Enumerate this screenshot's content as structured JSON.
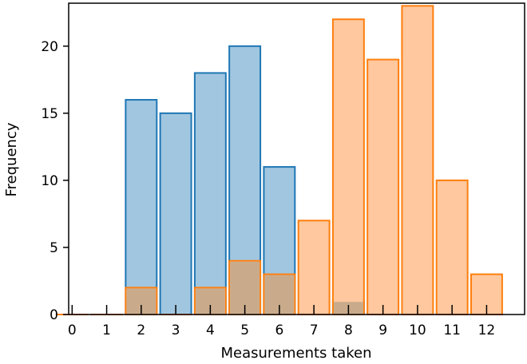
{
  "chart_data": {
    "type": "bar",
    "xlabel": "Measurements taken",
    "ylabel": "Frequency",
    "xlim": [
      -0.1,
      13.1
    ],
    "ylim": [
      0,
      23.2
    ],
    "x_ticks": [
      "0",
      "1",
      "2",
      "3",
      "4",
      "5",
      "6",
      "7",
      "8",
      "9",
      "10",
      "11",
      "12"
    ],
    "y_ticks": [
      "0",
      "5",
      "10",
      "15",
      "20"
    ],
    "grid": false,
    "bar_width": 0.9,
    "series": [
      {
        "color": "#1f77b4",
        "fill": "#a1c6e0",
        "x": [
          0,
          1,
          2,
          3,
          4,
          5,
          6,
          7,
          8,
          9,
          10,
          11,
          12
        ],
        "values": [
          0,
          0,
          16,
          15,
          18,
          20,
          11,
          0,
          1,
          0,
          0,
          0,
          0
        ]
      },
      {
        "color": "#ff7f0e",
        "fill": "#ffc89e",
        "x": [
          0,
          1,
          2,
          3,
          4,
          5,
          6,
          7,
          8,
          9,
          10,
          11,
          12
        ],
        "values": [
          0,
          0,
          2,
          0,
          2,
          4,
          3,
          7,
          22,
          19,
          23,
          10,
          3
        ]
      }
    ]
  }
}
